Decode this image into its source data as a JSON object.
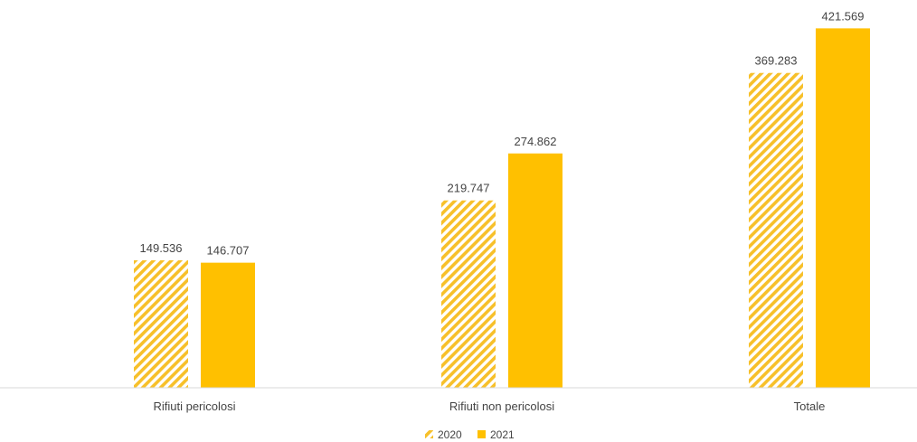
{
  "chart_data": {
    "type": "bar",
    "categories": [
      "Rifiuti pericolosi",
      "Rifiuti non pericolosi",
      "Totale"
    ],
    "series": [
      {
        "name": "2020",
        "values": [
          149536,
          219747,
          369283
        ],
        "labels": [
          "149.536",
          "219.747",
          "369.283"
        ],
        "pattern": "hatched",
        "color": "#F7C02A"
      },
      {
        "name": "2021",
        "values": [
          146707,
          274862,
          421569
        ],
        "labels": [
          "146.707",
          "274.862",
          "421.569"
        ],
        "pattern": "solid",
        "color": "#FFC000"
      }
    ],
    "ylim": [
      0,
      440000
    ],
    "legend_position": "bottom",
    "grid": false
  }
}
